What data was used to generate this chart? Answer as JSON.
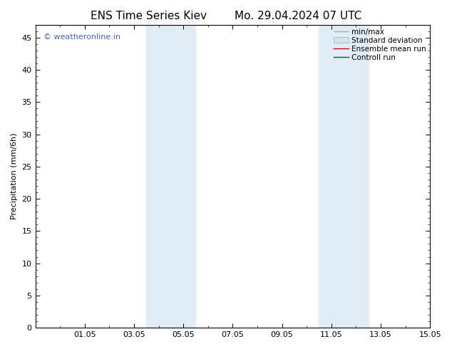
{
  "title_left": "ENS Time Series Kiev",
  "title_right": "Mo. 29.04.2024 07 UTC",
  "ylabel": "Precipitation (mm/6h)",
  "xlabel": "",
  "xlim": [
    0,
    16
  ],
  "ylim": [
    0,
    47
  ],
  "yticks": [
    0,
    5,
    10,
    15,
    20,
    25,
    30,
    35,
    40,
    45
  ],
  "xtick_positions": [
    2,
    4,
    6,
    8,
    10,
    12,
    14,
    16
  ],
  "xtick_labels": [
    "01.05",
    "03.05",
    "05.05",
    "07.05",
    "09.05",
    "11.05",
    "13.05",
    "15.05"
  ],
  "bg_color": "#ffffff",
  "plot_bg_color": "#ffffff",
  "shaded_regions": [
    {
      "x_start": 4.5,
      "x_end": 6.5,
      "color": "#e0edf8"
    },
    {
      "x_start": 11.5,
      "x_end": 13.5,
      "color": "#e0edf8"
    }
  ],
  "watermark_text": "© weatheronline.in",
  "watermark_color": "#4466bb",
  "legend_items": [
    {
      "label": "min/max",
      "color": "#aaaaaa",
      "lw": 1.0,
      "type": "line_bar"
    },
    {
      "label": "Standard deviation",
      "color": "#d0e4f0",
      "edgecolor": "#aaaaaa",
      "lw": 0.5,
      "type": "patch"
    },
    {
      "label": "Ensemble mean run",
      "color": "#cc0000",
      "lw": 1.0,
      "type": "line"
    },
    {
      "label": "Controll run",
      "color": "#006600",
      "lw": 1.0,
      "type": "line"
    }
  ],
  "tick_direction": "in",
  "title_fontsize": 11,
  "label_fontsize": 8,
  "tick_fontsize": 8,
  "legend_fontsize": 7.5,
  "watermark_fontsize": 8
}
